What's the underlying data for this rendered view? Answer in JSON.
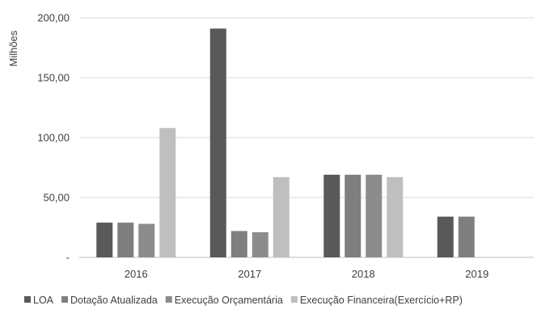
{
  "chart_data": {
    "type": "bar",
    "title": "",
    "xlabel": "",
    "ylabel": "Milhões",
    "ylim": [
      0,
      200
    ],
    "yticks": [
      0,
      50,
      100,
      150,
      200
    ],
    "ytick_labels": [
      "-",
      "50,00",
      "100,00",
      "150,00",
      "200,00"
    ],
    "categories": [
      "2016",
      "2017",
      "2018",
      "2019"
    ],
    "grid": "horizontal",
    "legend_position": "bottom",
    "series": [
      {
        "name": "LOA",
        "color": "#595959",
        "values": [
          29,
          191,
          69,
          34
        ]
      },
      {
        "name": "Dotação Atualizada",
        "color": "#7f7f7f",
        "values": [
          29,
          22,
          69,
          34
        ]
      },
      {
        "name": "Execução Orçamentária",
        "color": "#8c8c8c",
        "values": [
          28,
          21,
          69,
          null
        ]
      },
      {
        "name": "Execução Financeira(Exercício+RP)",
        "color": "#bfbfbf",
        "values": [
          108,
          67,
          67,
          null
        ]
      }
    ]
  }
}
